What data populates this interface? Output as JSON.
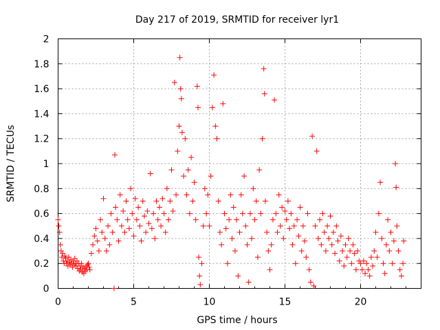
{
  "chart_data": {
    "type": "scatter",
    "title": "Day 217 of 2019, SRMTID for receiver lyr1",
    "xlabel": "GPS time / hours",
    "ylabel": "SRMTID / TECUs",
    "xlim": [
      0,
      24
    ],
    "ylim": [
      0,
      2
    ],
    "x_ticks": [
      0,
      5,
      10,
      15,
      20
    ],
    "x_tick_labels": [
      "0",
      "5",
      "10",
      "15",
      "20"
    ],
    "y_ticks": [
      0,
      0.2,
      0.4,
      0.6,
      0.8,
      1,
      1.2,
      1.4,
      1.6,
      1.8,
      2
    ],
    "y_tick_labels": [
      "0",
      "0.2",
      "0.4",
      "0.6",
      "0.8",
      "1",
      "1.2",
      "1.4",
      "1.6",
      "1.8",
      "2"
    ],
    "grid": true,
    "marker": "+",
    "color": "#ff0000",
    "series": [
      {
        "name": "lyr1",
        "points": [
          [
            0.0,
            0.55
          ],
          [
            0.05,
            0.5
          ],
          [
            0.1,
            0.45
          ],
          [
            0.15,
            0.35
          ],
          [
            0.2,
            0.3
          ],
          [
            0.25,
            0.25
          ],
          [
            0.3,
            0.28
          ],
          [
            0.35,
            0.22
          ],
          [
            0.4,
            0.2
          ],
          [
            0.45,
            0.26
          ],
          [
            0.5,
            0.24
          ],
          [
            0.55,
            0.2
          ],
          [
            0.6,
            0.22
          ],
          [
            0.65,
            0.18
          ],
          [
            0.7,
            0.25
          ],
          [
            0.75,
            0.21
          ],
          [
            0.8,
            0.19
          ],
          [
            0.85,
            0.23
          ],
          [
            0.9,
            0.2
          ],
          [
            0.95,
            0.17
          ],
          [
            1.0,
            0.22
          ],
          [
            1.05,
            0.19
          ],
          [
            1.1,
            0.24
          ],
          [
            1.15,
            0.2
          ],
          [
            1.2,
            0.18
          ],
          [
            1.25,
            0.22
          ],
          [
            1.3,
            0.16
          ],
          [
            1.35,
            0.2
          ],
          [
            1.4,
            0.14
          ],
          [
            1.45,
            0.18
          ],
          [
            1.5,
            0.15
          ],
          [
            1.55,
            0.2
          ],
          [
            1.6,
            0.13
          ],
          [
            1.65,
            0.17
          ],
          [
            1.7,
            0.12
          ],
          [
            1.75,
            0.16
          ],
          [
            1.8,
            0.14
          ],
          [
            1.85,
            0.18
          ],
          [
            1.9,
            0.15
          ],
          [
            1.95,
            0.19
          ],
          [
            2.0,
            0.2
          ],
          [
            2.05,
            0.17
          ],
          [
            2.1,
            0.15
          ],
          [
            2.2,
            0.28
          ],
          [
            2.3,
            0.35
          ],
          [
            2.4,
            0.42
          ],
          [
            2.5,
            0.48
          ],
          [
            2.6,
            0.38
          ],
          [
            2.7,
            0.3
          ],
          [
            2.8,
            0.55
          ],
          [
            2.9,
            0.45
          ],
          [
            3.0,
            0.72
          ],
          [
            3.1,
            0.4
          ],
          [
            3.2,
            0.3
          ],
          [
            3.3,
            0.5
          ],
          [
            3.4,
            0.35
          ],
          [
            3.5,
            0.6
          ],
          [
            3.6,
            0.45
          ],
          [
            3.7,
            0.0
          ],
          [
            3.75,
            1.07
          ],
          [
            3.8,
            0.65
          ],
          [
            3.9,
            0.55
          ],
          [
            4.0,
            0.38
          ],
          [
            4.1,
            0.75
          ],
          [
            4.2,
            0.5
          ],
          [
            4.3,
            0.62
          ],
          [
            4.4,
            0.45
          ],
          [
            4.5,
            0.7
          ],
          [
            4.6,
            0.55
          ],
          [
            4.7,
            0.48
          ],
          [
            4.8,
            0.8
          ],
          [
            4.9,
            0.6
          ],
          [
            5.0,
            0.42
          ],
          [
            5.1,
            0.72
          ],
          [
            5.2,
            0.55
          ],
          [
            5.3,
            0.65
          ],
          [
            5.4,
            0.5
          ],
          [
            5.5,
            0.38
          ],
          [
            5.6,
            0.7
          ],
          [
            5.7,
            0.58
          ],
          [
            5.8,
            0.45
          ],
          [
            5.9,
            0.62
          ],
          [
            6.0,
            0.52
          ],
          [
            6.1,
            0.92
          ],
          [
            6.2,
            0.48
          ],
          [
            6.3,
            0.6
          ],
          [
            6.4,
            0.4
          ],
          [
            6.5,
            0.7
          ],
          [
            6.6,
            0.55
          ],
          [
            6.7,
            0.65
          ],
          [
            6.8,
            0.5
          ],
          [
            6.9,
            0.72
          ],
          [
            7.0,
            0.6
          ],
          [
            7.1,
            0.45
          ],
          [
            7.2,
            0.8
          ],
          [
            7.3,
            0.55
          ],
          [
            7.4,
            0.7
          ],
          [
            7.5,
            0.95
          ],
          [
            7.6,
            0.62
          ],
          [
            7.7,
            1.65
          ],
          [
            7.8,
            0.75
          ],
          [
            7.9,
            1.1
          ],
          [
            8.0,
            1.3
          ],
          [
            8.05,
            1.85
          ],
          [
            8.1,
            1.6
          ],
          [
            8.15,
            1.52
          ],
          [
            8.2,
            1.25
          ],
          [
            8.3,
            0.9
          ],
          [
            8.4,
            1.2
          ],
          [
            8.5,
            0.75
          ],
          [
            8.6,
            0.95
          ],
          [
            8.7,
            0.6
          ],
          [
            8.8,
            1.05
          ],
          [
            8.9,
            0.7
          ],
          [
            9.0,
            0.85
          ],
          [
            9.1,
            0.55
          ],
          [
            9.2,
            1.62
          ],
          [
            9.25,
            1.45
          ],
          [
            9.3,
            0.25
          ],
          [
            9.35,
            0.1
          ],
          [
            9.4,
            0.03
          ],
          [
            9.5,
            0.2
          ],
          [
            9.6,
            0.5
          ],
          [
            9.7,
            0.8
          ],
          [
            9.8,
            0.6
          ],
          [
            9.9,
            0.75
          ],
          [
            10.0,
            0.5
          ],
          [
            10.1,
            0.9
          ],
          [
            10.2,
            1.45
          ],
          [
            10.3,
            1.71
          ],
          [
            10.4,
            1.3
          ],
          [
            10.5,
            1.2
          ],
          [
            10.6,
            0.7
          ],
          [
            10.7,
            0.45
          ],
          [
            10.8,
            0.35
          ],
          [
            10.9,
            1.48
          ],
          [
            11.0,
            0.6
          ],
          [
            11.1,
            0.48
          ],
          [
            11.2,
            0.2
          ],
          [
            11.3,
            0.55
          ],
          [
            11.4,
            0.75
          ],
          [
            11.5,
            0.4
          ],
          [
            11.6,
            0.65
          ],
          [
            11.7,
            0.3
          ],
          [
            11.8,
            0.55
          ],
          [
            11.9,
            0.1
          ],
          [
            12.0,
            0.45
          ],
          [
            12.1,
            0.75
          ],
          [
            12.2,
            0.6
          ],
          [
            12.3,
            0.9
          ],
          [
            12.4,
            0.5
          ],
          [
            12.5,
            0.35
          ],
          [
            12.6,
            0.05
          ],
          [
            12.7,
            0.6
          ],
          [
            12.8,
            0.4
          ],
          [
            12.9,
            0.8
          ],
          [
            13.0,
            0.55
          ],
          [
            13.1,
            0.7
          ],
          [
            13.2,
            0.25
          ],
          [
            13.3,
            0.95
          ],
          [
            13.4,
            0.6
          ],
          [
            13.5,
            1.2
          ],
          [
            13.6,
            1.76
          ],
          [
            13.65,
            1.56
          ],
          [
            13.7,
            0.7
          ],
          [
            13.8,
            0.45
          ],
          [
            13.9,
            0.3
          ],
          [
            14.0,
            0.15
          ],
          [
            14.1,
            0.35
          ],
          [
            14.2,
            0.55
          ],
          [
            14.3,
            1.51
          ],
          [
            14.4,
            0.6
          ],
          [
            14.5,
            0.45
          ],
          [
            14.6,
            0.75
          ],
          [
            14.7,
            0.5
          ],
          [
            14.8,
            0.65
          ],
          [
            14.9,
            0.4
          ],
          [
            15.0,
            0.62
          ],
          [
            15.1,
            0.55
          ],
          [
            15.2,
            0.7
          ],
          [
            15.3,
            0.48
          ],
          [
            15.4,
            0.6
          ],
          [
            15.5,
            0.35
          ],
          [
            15.6,
            0.5
          ],
          [
            15.7,
            0.2
          ],
          [
            15.8,
            0.55
          ],
          [
            15.9,
            0.42
          ],
          [
            16.0,
            0.65
          ],
          [
            16.1,
            0.3
          ],
          [
            16.2,
            0.5
          ],
          [
            16.3,
            0.38
          ],
          [
            16.4,
            0.25
          ],
          [
            16.5,
            0.6
          ],
          [
            16.6,
            0.15
          ],
          [
            16.7,
            0.05
          ],
          [
            16.8,
            1.22
          ],
          [
            16.9,
            0.02
          ],
          [
            17.0,
            0.5
          ],
          [
            17.1,
            1.1
          ],
          [
            17.2,
            0.4
          ],
          [
            17.3,
            0.55
          ],
          [
            17.4,
            0.35
          ],
          [
            17.5,
            0.6
          ],
          [
            17.6,
            0.45
          ],
          [
            17.7,
            0.3
          ],
          [
            17.8,
            0.5
          ],
          [
            17.9,
            0.4
          ],
          [
            18.0,
            0.58
          ],
          [
            18.1,
            0.35
          ],
          [
            18.2,
            0.45
          ],
          [
            18.3,
            0.28
          ],
          [
            18.4,
            0.5
          ],
          [
            18.5,
            0.38
          ],
          [
            18.6,
            0.22
          ],
          [
            18.7,
            0.42
          ],
          [
            18.8,
            0.3
          ],
          [
            18.9,
            0.18
          ],
          [
            19.0,
            0.35
          ],
          [
            19.1,
            0.25
          ],
          [
            19.2,
            0.4
          ],
          [
            19.3,
            0.3
          ],
          [
            19.4,
            0.2
          ],
          [
            19.5,
            0.35
          ],
          [
            19.6,
            0.28
          ],
          [
            19.7,
            0.15
          ],
          [
            19.8,
            0.3
          ],
          [
            19.9,
            0.22
          ],
          [
            20.0,
            0.2
          ],
          [
            20.1,
            0.15
          ],
          [
            20.2,
            0.22
          ],
          [
            20.3,
            0.12
          ],
          [
            20.4,
            0.2
          ],
          [
            20.5,
            0.15
          ],
          [
            20.6,
            0.1
          ],
          [
            20.7,
            0.25
          ],
          [
            20.8,
            0.18
          ],
          [
            20.9,
            0.3
          ],
          [
            21.0,
            0.45
          ],
          [
            21.1,
            0.25
          ],
          [
            21.2,
            0.6
          ],
          [
            21.3,
            0.85
          ],
          [
            21.4,
            0.4
          ],
          [
            21.5,
            0.2
          ],
          [
            21.6,
            0.12
          ],
          [
            21.7,
            0.35
          ],
          [
            21.8,
            0.55
          ],
          [
            21.9,
            0.3
          ],
          [
            22.0,
            0.45
          ],
          [
            22.1,
            0.2
          ],
          [
            22.2,
            0.38
          ],
          [
            22.3,
            1.0
          ],
          [
            22.35,
            0.81
          ],
          [
            22.4,
            0.5
          ],
          [
            22.5,
            0.3
          ],
          [
            22.6,
            0.15
          ],
          [
            22.7,
            0.1
          ],
          [
            22.8,
            0.2
          ],
          [
            22.85,
            0.38
          ]
        ]
      }
    ]
  }
}
